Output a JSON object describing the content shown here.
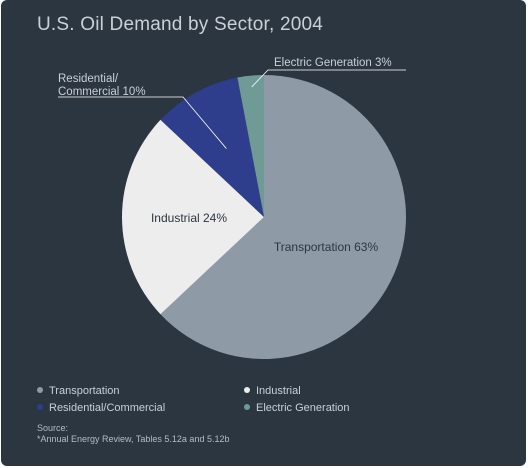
{
  "chart_data": {
    "type": "pie",
    "title": "U.S. Oil Demand by Sector, 2004",
    "slices": [
      {
        "name": "Transportation",
        "value": 63,
        "label": "Transportation 63%",
        "color": "#8e9ba6",
        "legend": "Transportation"
      },
      {
        "name": "Industrial",
        "value": 24,
        "label": "Industrial 24%",
        "color": "#ededed",
        "legend": "Industrial"
      },
      {
        "name": "Residential/Commercial",
        "value": 10,
        "label_lines": [
          "Residential/",
          "Commercial 10%"
        ],
        "color": "#2e3d8c",
        "legend": "Residential/Commercial"
      },
      {
        "name": "Electric Generation",
        "value": 3,
        "label": "Electric Generation 3%",
        "color": "#6f9a95",
        "legend": "Electric Generation"
      }
    ],
    "legend_position": "bottom-left"
  },
  "source": {
    "label": "Source:",
    "text": "*Annual Energy Review, Tables 5.12a and 5.12b"
  }
}
